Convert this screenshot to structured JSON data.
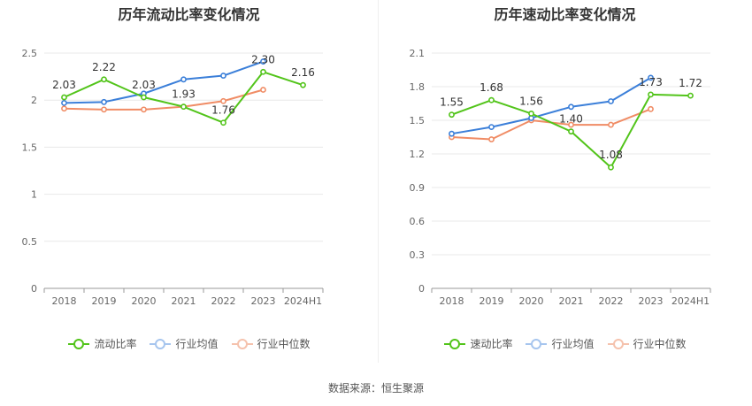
{
  "colors": {
    "primary": "#52c41a",
    "industry_avg": "#3b7fd9",
    "industry_median": "#f08c65"
  },
  "source": "数据来源：恒生聚源",
  "chart_data": [
    {
      "type": "line",
      "title": "历年流动比率变化情况",
      "categories": [
        "2018",
        "2019",
        "2020",
        "2021",
        "2022",
        "2023",
        "2024H1"
      ],
      "ylim": [
        0,
        2.5
      ],
      "yticks": [
        "0",
        "0.5",
        "1",
        "1.5",
        "2",
        "2.5"
      ],
      "grid": true,
      "legend_position": "bottom",
      "series": [
        {
          "name": "流动比率",
          "values": [
            2.03,
            2.22,
            2.03,
            1.93,
            1.76,
            2.3,
            2.16
          ],
          "labels": [
            "2.03",
            "2.22",
            "2.03",
            "1.93",
            "1.76",
            "2.30",
            "2.16"
          ]
        },
        {
          "name": "行业均值",
          "values": [
            1.97,
            1.98,
            2.07,
            2.22,
            2.26,
            2.41,
            null
          ]
        },
        {
          "name": "行业中位数",
          "values": [
            1.91,
            1.9,
            1.9,
            1.93,
            1.99,
            2.11,
            null
          ]
        }
      ]
    },
    {
      "type": "line",
      "title": "历年速动比率变化情况",
      "categories": [
        "2018",
        "2019",
        "2020",
        "2021",
        "2022",
        "2023",
        "2024H1"
      ],
      "ylim": [
        0,
        2.1
      ],
      "yticks": [
        "0",
        "0.3",
        "0.6",
        "0.9",
        "1.2",
        "1.5",
        "1.8",
        "2.1"
      ],
      "grid": true,
      "legend_position": "bottom",
      "series": [
        {
          "name": "速动比率",
          "values": [
            1.55,
            1.68,
            1.56,
            1.4,
            1.08,
            1.73,
            1.72
          ],
          "labels": [
            "1.55",
            "1.68",
            "1.56",
            "1.40",
            "1.08",
            "1.73",
            "1.72"
          ]
        },
        {
          "name": "行业均值",
          "values": [
            1.38,
            1.44,
            1.52,
            1.62,
            1.67,
            1.88,
            null
          ]
        },
        {
          "name": "行业中位数",
          "values": [
            1.35,
            1.33,
            1.5,
            1.46,
            1.46,
            1.6,
            null
          ]
        }
      ]
    }
  ]
}
